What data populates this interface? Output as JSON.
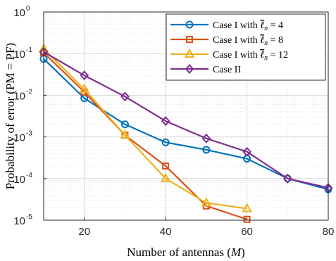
{
  "chart_data": {
    "type": "line",
    "title": "",
    "xlabel": "Number of antennas (M)",
    "xlabel_parts": {
      "prefix": "Number of antennas (",
      "var": "M",
      "suffix": ")"
    },
    "ylabel": "Probability of error (PM = PF)",
    "xlim": [
      10,
      80
    ],
    "ylim": [
      1e-05,
      1
    ],
    "yscale": "log",
    "x_ticks": [
      20,
      40,
      60,
      80
    ],
    "y_ticks": [
      {
        "base": "10",
        "exp": "-5"
      },
      {
        "base": "10",
        "exp": "-4"
      },
      {
        "base": "10",
        "exp": "-3"
      },
      {
        "base": "10",
        "exp": "-2"
      },
      {
        "base": "10",
        "exp": "-1"
      },
      {
        "base": "10",
        "exp": "0"
      }
    ],
    "grid": true,
    "legend_position": "top-right",
    "series": [
      {
        "name": "Case I with ℓ̄n = 4",
        "legend": {
          "prefix": "Case I with ",
          "sym": "ℓ",
          "sub": "n",
          "suffix": " = 4"
        },
        "color": "#0072BD",
        "marker": "circle",
        "x": [
          10,
          20,
          30,
          40,
          50,
          60,
          70,
          80
        ],
        "y": [
          0.075,
          0.0085,
          0.002,
          0.00074,
          0.00049,
          0.0003,
          0.0001,
          5.5e-05
        ]
      },
      {
        "name": "Case I with ℓ̄n = 8",
        "legend": {
          "prefix": "Case I with ",
          "sym": "ℓ",
          "sub": "n",
          "suffix": " = 8"
        },
        "color": "#D95319",
        "marker": "square",
        "x": [
          10,
          20,
          30,
          40,
          50,
          60
        ],
        "y": [
          0.105,
          0.012,
          0.0011,
          0.0002,
          2.2e-05,
          1.05e-05
        ]
      },
      {
        "name": "Case I with ℓ̄n = 12",
        "legend": {
          "prefix": "Case I with ",
          "sym": "ℓ",
          "sub": "n",
          "suffix": " = 12"
        },
        "color": "#EDB120",
        "marker": "triangle",
        "x": [
          10,
          20,
          30,
          40,
          50,
          60
        ],
        "y": [
          0.13,
          0.014,
          0.0011,
          0.0001,
          2.6e-05,
          1.9e-05
        ]
      },
      {
        "name": "Case II",
        "legend": {
          "prefix": "Case II",
          "sym": "",
          "sub": "",
          "suffix": ""
        },
        "color": "#7E2F8E",
        "marker": "diamond",
        "x": [
          10,
          20,
          30,
          40,
          50,
          60,
          70,
          80
        ],
        "y": [
          0.11,
          0.03,
          0.0093,
          0.0024,
          0.00092,
          0.00044,
          0.0001,
          6e-05
        ]
      }
    ]
  }
}
